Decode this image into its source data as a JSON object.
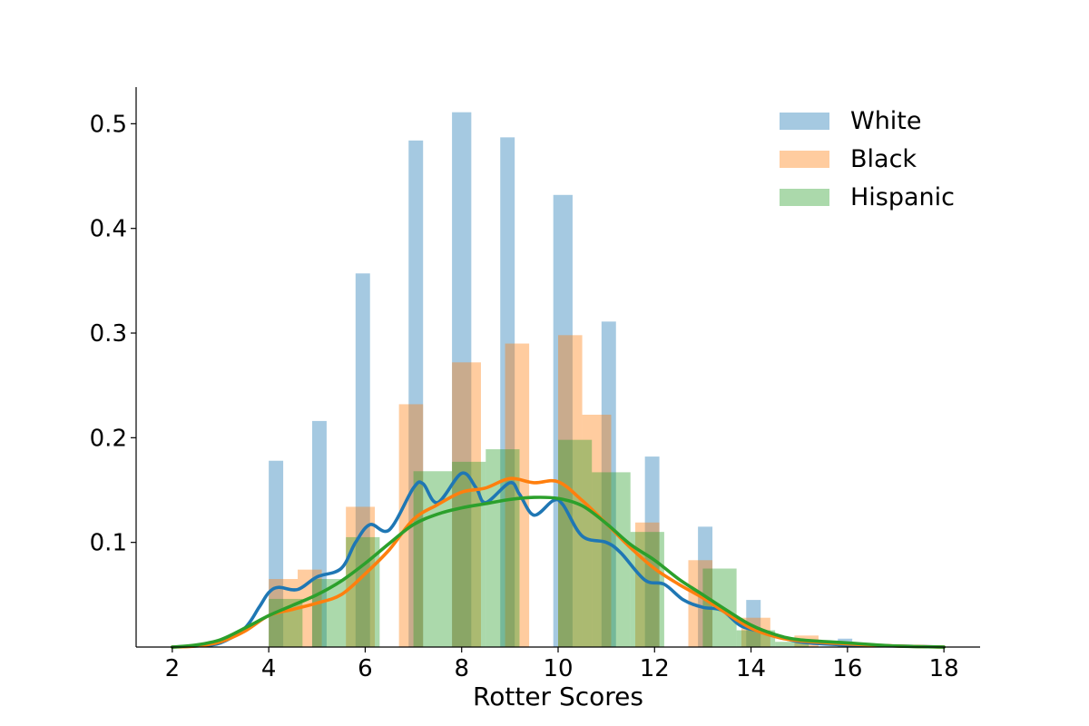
{
  "chart_data": {
    "type": "histogram-kde",
    "xlabel": "Rotter Scores",
    "ylabel": "",
    "xlim": [
      1.25,
      18.75
    ],
    "ylim": [
      0,
      0.535
    ],
    "x_ticks": [
      "2",
      "4",
      "6",
      "8",
      "10",
      "12",
      "14",
      "16",
      "18"
    ],
    "y_ticks": [
      "0.1",
      "0.2",
      "0.3",
      "0.4",
      "0.5"
    ],
    "legend_position": "top-right",
    "grid": false,
    "series": [
      {
        "name": "White",
        "color": "#1f77b4",
        "bars": [
          {
            "x0": 4.0,
            "x1": 4.3,
            "value": 0.178
          },
          {
            "x0": 4.9,
            "x1": 5.2,
            "value": 0.216
          },
          {
            "x0": 5.8,
            "x1": 6.1,
            "value": 0.357
          },
          {
            "x0": 6.9,
            "x1": 7.2,
            "value": 0.484
          },
          {
            "x0": 7.8,
            "x1": 8.2,
            "value": 0.511
          },
          {
            "x0": 8.8,
            "x1": 9.1,
            "value": 0.487
          },
          {
            "x0": 9.9,
            "x1": 10.3,
            "value": 0.432
          },
          {
            "x0": 10.9,
            "x1": 11.2,
            "value": 0.311
          },
          {
            "x0": 11.8,
            "x1": 12.1,
            "value": 0.182
          },
          {
            "x0": 12.9,
            "x1": 13.2,
            "value": 0.115
          },
          {
            "x0": 13.9,
            "x1": 14.2,
            "value": 0.045
          },
          {
            "x0": 15.8,
            "x1": 16.1,
            "value": 0.008
          }
        ],
        "kde": [
          [
            2.0,
            0.0
          ],
          [
            2.5,
            0.001
          ],
          [
            3.0,
            0.004
          ],
          [
            3.5,
            0.018
          ],
          [
            3.8,
            0.038
          ],
          [
            4.0,
            0.052
          ],
          [
            4.2,
            0.057
          ],
          [
            4.6,
            0.055
          ],
          [
            5.0,
            0.067
          ],
          [
            5.5,
            0.075
          ],
          [
            5.8,
            0.1
          ],
          [
            6.1,
            0.117
          ],
          [
            6.5,
            0.112
          ],
          [
            7.0,
            0.152
          ],
          [
            7.2,
            0.156
          ],
          [
            7.5,
            0.138
          ],
          [
            8.0,
            0.166
          ],
          [
            8.3,
            0.152
          ],
          [
            8.5,
            0.138
          ],
          [
            9.0,
            0.157
          ],
          [
            9.2,
            0.146
          ],
          [
            9.5,
            0.126
          ],
          [
            9.9,
            0.14
          ],
          [
            10.1,
            0.136
          ],
          [
            10.5,
            0.106
          ],
          [
            11.0,
            0.1
          ],
          [
            11.3,
            0.09
          ],
          [
            11.8,
            0.064
          ],
          [
            12.2,
            0.06
          ],
          [
            12.6,
            0.045
          ],
          [
            13.0,
            0.038
          ],
          [
            13.4,
            0.035
          ],
          [
            13.8,
            0.02
          ],
          [
            14.3,
            0.014
          ],
          [
            15.0,
            0.005
          ],
          [
            16.0,
            0.002
          ],
          [
            17.0,
            0.001
          ],
          [
            18.0,
            0.0
          ]
        ]
      },
      {
        "name": "Black",
        "color": "#ff7f0e",
        "bars": [
          {
            "x0": 4.0,
            "x1": 4.6,
            "value": 0.065
          },
          {
            "x0": 4.6,
            "x1": 5.1,
            "value": 0.074
          },
          {
            "x0": 5.6,
            "x1": 6.2,
            "value": 0.134
          },
          {
            "x0": 6.7,
            "x1": 7.2,
            "value": 0.232
          },
          {
            "x0": 7.8,
            "x1": 8.4,
            "value": 0.272
          },
          {
            "x0": 8.9,
            "x1": 9.4,
            "value": 0.29
          },
          {
            "x0": 10.0,
            "x1": 10.5,
            "value": 0.298
          },
          {
            "x0": 10.5,
            "x1": 11.1,
            "value": 0.222
          },
          {
            "x0": 11.6,
            "x1": 12.1,
            "value": 0.119
          },
          {
            "x0": 12.7,
            "x1": 13.2,
            "value": 0.083
          },
          {
            "x0": 13.8,
            "x1": 14.4,
            "value": 0.028
          },
          {
            "x0": 14.9,
            "x1": 15.4,
            "value": 0.011
          }
        ],
        "kde": [
          [
            2.0,
            0.0
          ],
          [
            2.5,
            0.001
          ],
          [
            3.0,
            0.005
          ],
          [
            3.5,
            0.015
          ],
          [
            4.0,
            0.03
          ],
          [
            4.5,
            0.036
          ],
          [
            5.0,
            0.042
          ],
          [
            5.5,
            0.05
          ],
          [
            6.0,
            0.07
          ],
          [
            6.5,
            0.093
          ],
          [
            7.0,
            0.122
          ],
          [
            7.5,
            0.136
          ],
          [
            8.0,
            0.148
          ],
          [
            8.5,
            0.152
          ],
          [
            9.0,
            0.161
          ],
          [
            9.5,
            0.157
          ],
          [
            10.0,
            0.158
          ],
          [
            10.5,
            0.14
          ],
          [
            11.0,
            0.118
          ],
          [
            11.5,
            0.095
          ],
          [
            12.0,
            0.075
          ],
          [
            12.5,
            0.06
          ],
          [
            13.0,
            0.047
          ],
          [
            13.5,
            0.032
          ],
          [
            14.0,
            0.018
          ],
          [
            14.5,
            0.01
          ],
          [
            15.0,
            0.006
          ],
          [
            16.0,
            0.003
          ],
          [
            17.0,
            0.001
          ],
          [
            18.0,
            0.0
          ]
        ]
      },
      {
        "name": "Hispanic",
        "color": "#2ca02c",
        "bars": [
          {
            "x0": 4.0,
            "x1": 4.7,
            "value": 0.046
          },
          {
            "x0": 4.9,
            "x1": 5.6,
            "value": 0.065
          },
          {
            "x0": 5.6,
            "x1": 6.3,
            "value": 0.105
          },
          {
            "x0": 7.0,
            "x1": 7.8,
            "value": 0.168
          },
          {
            "x0": 7.8,
            "x1": 8.5,
            "value": 0.177
          },
          {
            "x0": 8.5,
            "x1": 9.2,
            "value": 0.189
          },
          {
            "x0": 10.0,
            "x1": 10.7,
            "value": 0.198
          },
          {
            "x0": 10.7,
            "x1": 11.5,
            "value": 0.167
          },
          {
            "x0": 11.5,
            "x1": 12.2,
            "value": 0.11
          },
          {
            "x0": 13.0,
            "x1": 13.7,
            "value": 0.075
          },
          {
            "x0": 13.7,
            "x1": 14.5,
            "value": 0.016
          },
          {
            "x0": 14.5,
            "x1": 15.2,
            "value": 0.005
          }
        ],
        "kde": [
          [
            2.0,
            0.0
          ],
          [
            2.5,
            0.002
          ],
          [
            3.0,
            0.007
          ],
          [
            3.5,
            0.018
          ],
          [
            4.0,
            0.03
          ],
          [
            4.5,
            0.04
          ],
          [
            5.0,
            0.05
          ],
          [
            5.5,
            0.063
          ],
          [
            6.0,
            0.08
          ],
          [
            6.5,
            0.099
          ],
          [
            7.0,
            0.117
          ],
          [
            7.5,
            0.127
          ],
          [
            8.0,
            0.133
          ],
          [
            8.5,
            0.137
          ],
          [
            9.0,
            0.141
          ],
          [
            9.5,
            0.143
          ],
          [
            10.0,
            0.142
          ],
          [
            10.5,
            0.135
          ],
          [
            11.0,
            0.118
          ],
          [
            11.5,
            0.098
          ],
          [
            12.0,
            0.083
          ],
          [
            12.5,
            0.065
          ],
          [
            13.0,
            0.05
          ],
          [
            13.5,
            0.035
          ],
          [
            14.0,
            0.021
          ],
          [
            14.5,
            0.012
          ],
          [
            15.0,
            0.007
          ],
          [
            16.0,
            0.004
          ],
          [
            17.0,
            0.001
          ],
          [
            18.0,
            0.0
          ]
        ]
      }
    ]
  }
}
